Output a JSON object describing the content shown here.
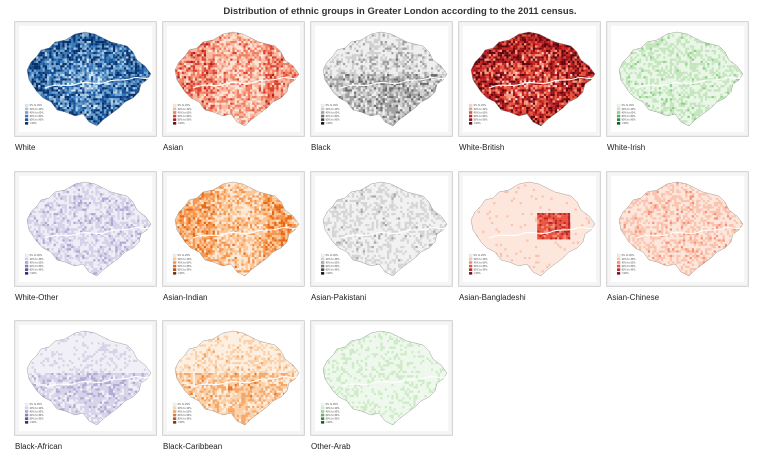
{
  "title": "Distribution of ethnic groups in Greater London according to the 2011 census.",
  "legend": {
    "ranges": [
      "0% to 20%",
      "20% to 40%",
      "40% to 60%",
      "60% to 80%",
      "80% to 90%",
      ">90%"
    ]
  },
  "maps": [
    {
      "label": "White",
      "palette": [
        "#d8e6f3",
        "#a9c8e3",
        "#6ea3cf",
        "#3a79b6",
        "#13519a",
        "#073068"
      ],
      "intensity": 0.8
    },
    {
      "label": "Asian",
      "palette": [
        "#fde4d6",
        "#f9b8a0",
        "#f17e63",
        "#dc4232",
        "#b11a1f",
        "#6c0a12"
      ],
      "intensity": 0.48
    },
    {
      "label": "Black",
      "palette": [
        "#efefef",
        "#cfcfcf",
        "#a0a0a0",
        "#6e6e6e",
        "#3d3d3d",
        "#111111"
      ],
      "intensity": 0.45
    },
    {
      "label": "White-British",
      "palette": [
        "#fcd0c2",
        "#f39a80",
        "#e5553e",
        "#c82424",
        "#9d0f18",
        "#5e0510"
      ],
      "intensity": 0.75
    },
    {
      "label": "White-Irish",
      "palette": [
        "#eaf6e7",
        "#c4e6bd",
        "#91cf8c",
        "#54b061",
        "#25843e",
        "#0d5324"
      ],
      "intensity": 0.3
    },
    {
      "label": "White-Other",
      "palette": [
        "#efedf5",
        "#d4d1e8",
        "#aea8d3",
        "#8479ba",
        "#5e4a9f",
        "#3f1f7e"
      ],
      "intensity": 0.35
    },
    {
      "label": "Asian-Indian",
      "palette": [
        "#fde9d6",
        "#fbc595",
        "#f7964d",
        "#e66916",
        "#bd4807",
        "#7d2a04"
      ],
      "intensity": 0.42
    },
    {
      "label": "Asian-Pakistani",
      "palette": [
        "#f2f2f2",
        "#d5d5d5",
        "#a9a9a9",
        "#777777",
        "#444444",
        "#141414"
      ],
      "intensity": 0.28
    },
    {
      "label": "Asian-Bangladeshi",
      "palette": [
        "#fde7dd",
        "#fbc3ad",
        "#f79176",
        "#e8543f",
        "#c2232a",
        "#7f0e16"
      ],
      "intensity": 0.22
    },
    {
      "label": "Asian-Chinese",
      "palette": [
        "#fde7dd",
        "#fbc3ad",
        "#f79176",
        "#e8543f",
        "#c2232a",
        "#7f0e16"
      ],
      "intensity": 0.3
    },
    {
      "label": "Black-African",
      "palette": [
        "#f2f0f7",
        "#d6d3e9",
        "#b0aad4",
        "#887dbc",
        "#6150a2",
        "#3f1f7e"
      ],
      "intensity": 0.28
    },
    {
      "label": "Black-Caribbean",
      "palette": [
        "#fdefe2",
        "#fbd1aa",
        "#f6a868",
        "#e57a2c",
        "#c1550c",
        "#803204"
      ],
      "intensity": 0.36
    },
    {
      "label": "Other-Arab",
      "palette": [
        "#eff8ec",
        "#cdebc7",
        "#9fd49a",
        "#63b46b",
        "#2f8a43",
        "#0b5a26"
      ],
      "intensity": 0.2
    }
  ]
}
